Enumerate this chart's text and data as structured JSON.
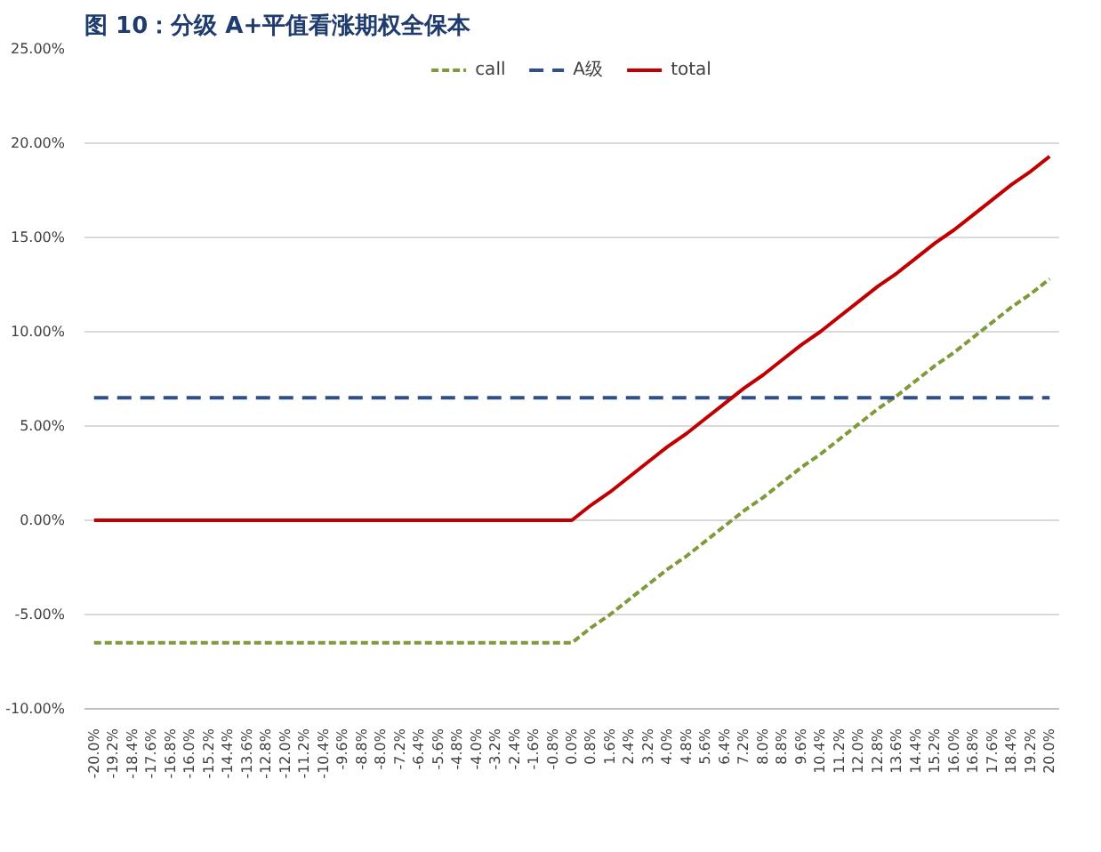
{
  "chart_data": {
    "type": "line",
    "title": "图 10：分级 A+平值看涨期权全保本",
    "categories": [
      "-20.0%",
      "-19.2%",
      "-18.4%",
      "-17.6%",
      "-16.8%",
      "-16.0%",
      "-15.2%",
      "-14.4%",
      "-13.6%",
      "-12.8%",
      "-12.0%",
      "-11.2%",
      "-10.4%",
      "-9.6%",
      "-8.8%",
      "-8.0%",
      "-7.2%",
      "-6.4%",
      "-5.6%",
      "-4.8%",
      "-4.0%",
      "-3.2%",
      "-2.4%",
      "-1.6%",
      "-0.8%",
      "0.0%",
      "0.8%",
      "1.6%",
      "2.4%",
      "3.2%",
      "4.0%",
      "4.8%",
      "5.6%",
      "6.4%",
      "7.2%",
      "8.0%",
      "8.8%",
      "9.6%",
      "10.4%",
      "11.2%",
      "12.0%",
      "12.8%",
      "13.6%",
      "14.4%",
      "15.2%",
      "16.0%",
      "16.8%",
      "17.6%",
      "18.4%",
      "19.2%",
      "20.0%"
    ],
    "series": [
      {
        "name": "call",
        "color": "#7f9a3a",
        "line_style": "dotted",
        "values": [
          -6.5,
          -6.5,
          -6.5,
          -6.5,
          -6.5,
          -6.5,
          -6.5,
          -6.5,
          -6.5,
          -6.5,
          -6.5,
          -6.5,
          -6.5,
          -6.5,
          -6.5,
          -6.5,
          -6.5,
          -6.5,
          -6.5,
          -6.5,
          -6.5,
          -6.5,
          -6.5,
          -6.5,
          -6.5,
          -6.5,
          -5.7,
          -5.0,
          -4.2,
          -3.4,
          -2.6,
          -1.9,
          -1.1,
          -0.3,
          0.5,
          1.2,
          2.0,
          2.8,
          3.5,
          4.3,
          5.1,
          5.9,
          6.6,
          7.4,
          8.2,
          8.9,
          9.7,
          10.5,
          11.3,
          12.0,
          12.8
        ]
      },
      {
        "name": "A级",
        "color": "#2e4e8c",
        "line_style": "dashed",
        "values": [
          6.5,
          6.5,
          6.5,
          6.5,
          6.5,
          6.5,
          6.5,
          6.5,
          6.5,
          6.5,
          6.5,
          6.5,
          6.5,
          6.5,
          6.5,
          6.5,
          6.5,
          6.5,
          6.5,
          6.5,
          6.5,
          6.5,
          6.5,
          6.5,
          6.5,
          6.5,
          6.5,
          6.5,
          6.5,
          6.5,
          6.5,
          6.5,
          6.5,
          6.5,
          6.5,
          6.5,
          6.5,
          6.5,
          6.5,
          6.5,
          6.5,
          6.5,
          6.5,
          6.5,
          6.5,
          6.5,
          6.5,
          6.5,
          6.5,
          6.5,
          6.5
        ]
      },
      {
        "name": "total",
        "color": "#c00000",
        "line_style": "solid",
        "values": [
          0,
          0,
          0,
          0,
          0,
          0,
          0,
          0,
          0,
          0,
          0,
          0,
          0,
          0,
          0,
          0,
          0,
          0,
          0,
          0,
          0,
          0,
          0,
          0,
          0,
          0,
          0.8,
          1.5,
          2.3,
          3.1,
          3.9,
          4.6,
          5.4,
          6.2,
          7.0,
          7.7,
          8.5,
          9.3,
          10.0,
          10.8,
          11.6,
          12.4,
          13.1,
          13.9,
          14.7,
          15.4,
          16.2,
          17.0,
          17.8,
          18.5,
          19.3
        ]
      }
    ],
    "ylim": [
      -10,
      25
    ],
    "yticks": [
      {
        "value": -10,
        "label": "-10.00%"
      },
      {
        "value": -5,
        "label": "-5.00%"
      },
      {
        "value": 0,
        "label": "0.00%"
      },
      {
        "value": 5,
        "label": "5.00%"
      },
      {
        "value": 10,
        "label": "10.00%"
      },
      {
        "value": 15,
        "label": "15.00%"
      },
      {
        "value": 20,
        "label": "20.00%"
      },
      {
        "value": 25,
        "label": "25.00%"
      }
    ],
    "grid": "y",
    "legend": "top",
    "marker": "none"
  }
}
